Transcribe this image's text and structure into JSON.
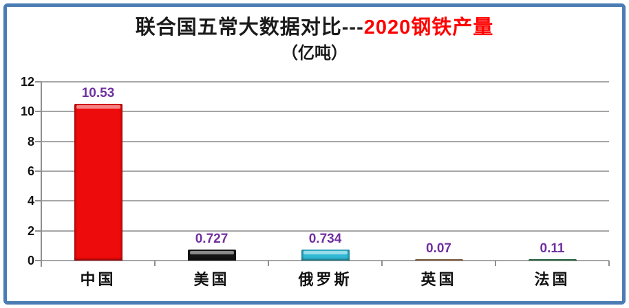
{
  "title": {
    "black_part": "联合国五常大数据对比---",
    "red_part": "2020钢铁产量",
    "red_color": "#FF0000"
  },
  "subtitle": "（亿吨）",
  "chart_data": {
    "type": "bar",
    "title": "联合国五常大数据对比---2020钢铁产量",
    "subtitle": "（亿吨）",
    "categories": [
      "中国",
      "美国",
      "俄罗斯",
      "英国",
      "法国"
    ],
    "values": [
      10.53,
      0.727,
      0.734,
      0.07,
      0.11
    ],
    "value_labels": [
      "10.53",
      "0.727",
      "0.734",
      "0.07",
      "0.11"
    ],
    "bar_colors": [
      "#EE0B0B",
      "#141414",
      "#2FB9D4",
      "#D89A66",
      "#3FA768"
    ],
    "ylim": [
      0,
      12
    ],
    "yticks": [
      "0",
      "2",
      "4",
      "6",
      "8",
      "10",
      "12"
    ],
    "ytick_values": [
      0,
      2,
      4,
      6,
      8,
      10,
      12
    ],
    "grid": true,
    "legend": "none",
    "value_label_color": "#7030A0",
    "gridline_color": "#A6A6A6",
    "frame_border_color": "#4B7CB4"
  }
}
